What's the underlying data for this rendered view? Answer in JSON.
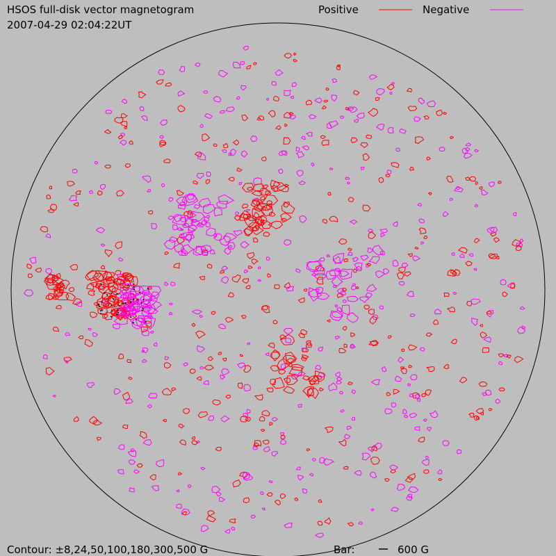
{
  "header": {
    "title": "HSOS full-disk vector magnetogram",
    "timestamp": "2007-04-29 02:04:22UT"
  },
  "legend": [
    {
      "label": "Positive",
      "color": "#ff0000"
    },
    {
      "label": "Negative",
      "color": "#ff00ff"
    }
  ],
  "footer": {
    "contour": "Contour: ±8,24,50,100,180,300,500 G",
    "bar_label": "Bar:",
    "bar_value": "600 G"
  }
}
